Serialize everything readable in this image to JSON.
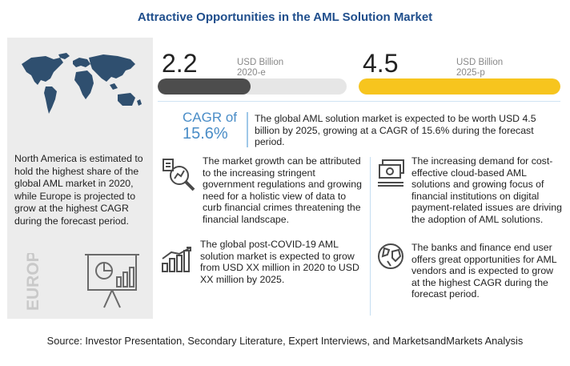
{
  "title": "Attractive Opportunities in the AML Solution Market",
  "left_panel": {
    "summary": "North America is estimated to hold the highest share of the global AML market in 2020, while Europe is projected to grow at the highest CAGR during the forecast period.",
    "region_label": "EUROPE"
  },
  "market_2020": {
    "value": "2.2",
    "unit": "USD Billion",
    "year": "2020-e",
    "bar_fraction": 0.49,
    "bar_color": "#4d4d4d"
  },
  "market_2025": {
    "value": "4.5",
    "unit": "USD Billion",
    "year": "2025-p",
    "bar_fraction": 1.0,
    "bar_color": "#f7c51e"
  },
  "cagr": {
    "label": "CAGR of",
    "value": "15.6%",
    "text": "The global AML solution market is expected to be worth USD 4.5 billion by 2025, growing at a CAGR of 15.6% during the forecast period."
  },
  "insights": {
    "growth": "The market growth can be attributed to the increasing stringent government regulations and growing need for a holistic view of data to curb financial crimes threatening the financial landscape.",
    "demand": "The increasing demand for cost-effective cloud-based AML solutions and growing focus of financial institutions on digital payment-related issues are driving the adoption of AML solutions.",
    "covid": "The global post-COVID-19 AML solution market is expected to grow from USD XX million in 2020 to USD XX million by 2025.",
    "banks": "The banks and finance end user offers great opportunities for AML vendors and is expected to grow at the highest CAGR during the forecast period."
  },
  "source": "Source: Investor Presentation, Secondary Literature, Expert Interviews, and MarketsandMarkets Analysis",
  "colors": {
    "title": "#1f4e8c",
    "accent_blue": "#4a8dc7",
    "yellow": "#f7c51e",
    "dark_bar": "#4d4d4d"
  },
  "icons": [
    "world-map-icon",
    "magnifier-chart-icon",
    "cash-stack-icon",
    "bar-growth-icon",
    "globe-icon",
    "presentation-chart-icon"
  ]
}
